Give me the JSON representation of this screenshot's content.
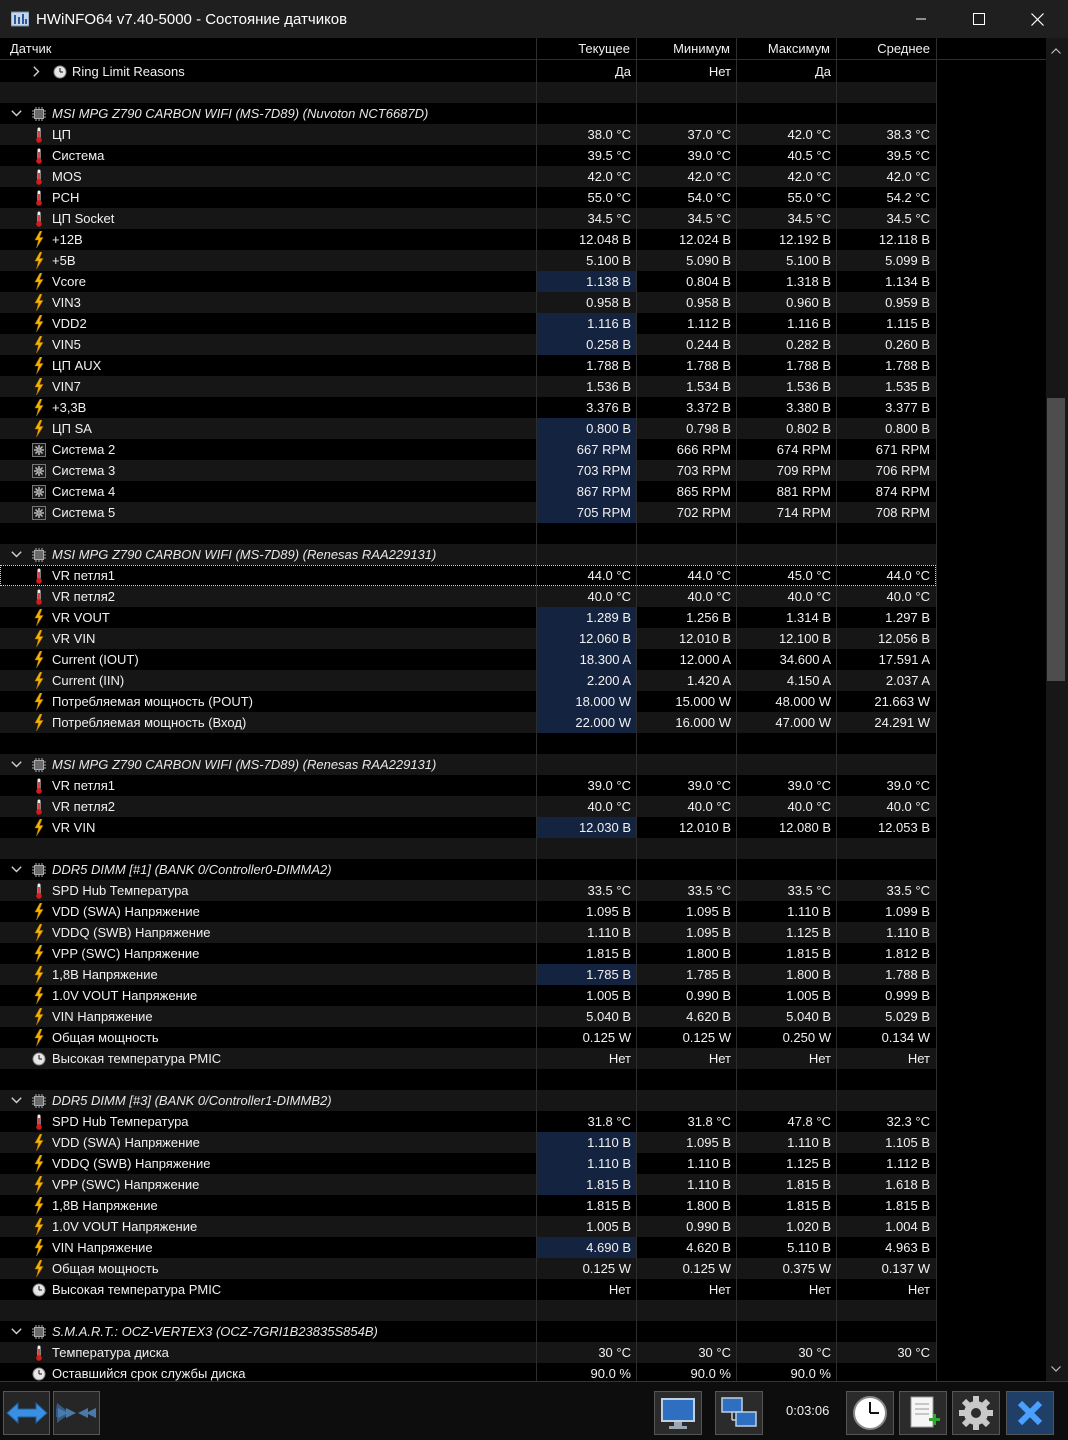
{
  "window": {
    "title": "HWiNFO64 v7.40-5000 - Состояние датчиков"
  },
  "header": {
    "sensor": "Датчик",
    "current": "Текущее",
    "minimum": "Минимум",
    "maximum": "Максимум",
    "average": "Среднее"
  },
  "rows": [
    {
      "type": "item",
      "icon": "clock-icon",
      "label": "Ring Limit Reasons",
      "expander": true,
      "values": [
        "Да",
        "Нет",
        "Да",
        ""
      ]
    },
    {
      "type": "blank"
    },
    {
      "type": "group",
      "label": "MSI MPG Z790 CARBON WIFI (MS-7D89) (Nuvoton NCT6687D)"
    },
    {
      "type": "item",
      "icon": "thermometer-icon",
      "label": "ЦП",
      "values": [
        "38.0 °C",
        "37.0 °C",
        "42.0 °C",
        "38.3 °C"
      ]
    },
    {
      "type": "item",
      "icon": "thermometer-icon",
      "label": "Система",
      "values": [
        "39.5 °C",
        "39.0 °C",
        "40.5 °C",
        "39.5 °C"
      ]
    },
    {
      "type": "item",
      "icon": "thermometer-icon",
      "label": "MOS",
      "values": [
        "42.0 °C",
        "42.0 °C",
        "42.0 °C",
        "42.0 °C"
      ]
    },
    {
      "type": "item",
      "icon": "thermometer-icon",
      "label": "PCH",
      "values": [
        "55.0 °C",
        "54.0 °C",
        "55.0 °C",
        "54.2 °C"
      ]
    },
    {
      "type": "item",
      "icon": "thermometer-icon",
      "label": "ЦП Socket",
      "values": [
        "34.5 °C",
        "34.5 °C",
        "34.5 °C",
        "34.5 °C"
      ]
    },
    {
      "type": "item",
      "icon": "lightning-icon",
      "label": "+12В",
      "values": [
        "12.048 В",
        "12.024 В",
        "12.192 В",
        "12.118 В"
      ]
    },
    {
      "type": "item",
      "icon": "lightning-icon",
      "label": "+5В",
      "values": [
        "5.100 В",
        "5.090 В",
        "5.100 В",
        "5.099 В"
      ]
    },
    {
      "type": "item",
      "icon": "lightning-icon",
      "label": "Vcore",
      "hl": true,
      "values": [
        "1.138 В",
        "0.804 В",
        "1.318 В",
        "1.134 В"
      ]
    },
    {
      "type": "item",
      "icon": "lightning-icon",
      "label": "VIN3",
      "values": [
        "0.958 В",
        "0.958 В",
        "0.960 В",
        "0.959 В"
      ]
    },
    {
      "type": "item",
      "icon": "lightning-icon",
      "label": "VDD2",
      "hl": true,
      "values": [
        "1.116 В",
        "1.112 В",
        "1.116 В",
        "1.115 В"
      ]
    },
    {
      "type": "item",
      "icon": "lightning-icon",
      "label": "VIN5",
      "hl": true,
      "values": [
        "0.258 В",
        "0.244 В",
        "0.282 В",
        "0.260 В"
      ]
    },
    {
      "type": "item",
      "icon": "lightning-icon",
      "label": "ЦП AUX",
      "values": [
        "1.788 В",
        "1.788 В",
        "1.788 В",
        "1.788 В"
      ]
    },
    {
      "type": "item",
      "icon": "lightning-icon",
      "label": "VIN7",
      "values": [
        "1.536 В",
        "1.534 В",
        "1.536 В",
        "1.535 В"
      ]
    },
    {
      "type": "item",
      "icon": "lightning-icon",
      "label": "+3,3В",
      "values": [
        "3.376 В",
        "3.372 В",
        "3.380 В",
        "3.377 В"
      ]
    },
    {
      "type": "item",
      "icon": "lightning-icon",
      "label": "ЦП SA",
      "hl": true,
      "values": [
        "0.800 В",
        "0.798 В",
        "0.802 В",
        "0.800 В"
      ]
    },
    {
      "type": "item",
      "icon": "fan-icon",
      "label": "Система 2",
      "hl": true,
      "values": [
        "667 RPM",
        "666 RPM",
        "674 RPM",
        "671 RPM"
      ]
    },
    {
      "type": "item",
      "icon": "fan-icon",
      "label": "Система 3",
      "hl": true,
      "values": [
        "703 RPM",
        "703 RPM",
        "709 RPM",
        "706 RPM"
      ]
    },
    {
      "type": "item",
      "icon": "fan-icon",
      "label": "Система 4",
      "hl": true,
      "values": [
        "867 RPM",
        "865 RPM",
        "881 RPM",
        "874 RPM"
      ]
    },
    {
      "type": "item",
      "icon": "fan-icon",
      "label": "Система 5",
      "hl": true,
      "values": [
        "705 RPM",
        "702 RPM",
        "714 RPM",
        "708 RPM"
      ]
    },
    {
      "type": "blank"
    },
    {
      "type": "group",
      "label": "MSI MPG Z790 CARBON WIFI (MS-7D89) (Renesas RAA229131)"
    },
    {
      "type": "item",
      "icon": "thermometer-icon",
      "label": "VR петля1",
      "selected": true,
      "values": [
        "44.0 °C",
        "44.0 °C",
        "45.0 °C",
        "44.0 °C"
      ]
    },
    {
      "type": "item",
      "icon": "thermometer-icon",
      "label": "VR петля2",
      "values": [
        "40.0 °C",
        "40.0 °C",
        "40.0 °C",
        "40.0 °C"
      ]
    },
    {
      "type": "item",
      "icon": "lightning-icon",
      "label": "VR VOUT",
      "hl": true,
      "values": [
        "1.289 В",
        "1.256 В",
        "1.314 В",
        "1.297 В"
      ]
    },
    {
      "type": "item",
      "icon": "lightning-icon",
      "label": "VR VIN",
      "hl": true,
      "values": [
        "12.060 В",
        "12.010 В",
        "12.100 В",
        "12.056 В"
      ]
    },
    {
      "type": "item",
      "icon": "lightning-icon",
      "label": "Current (IOUT)",
      "hl": true,
      "values": [
        "18.300 A",
        "12.000 A",
        "34.600 A",
        "17.591 A"
      ]
    },
    {
      "type": "item",
      "icon": "lightning-icon",
      "label": "Current (IIN)",
      "hl": true,
      "values": [
        "2.200 A",
        "1.420 A",
        "4.150 A",
        "2.037 A"
      ]
    },
    {
      "type": "item",
      "icon": "lightning-icon",
      "label": "Потребляемая мощность (POUT)",
      "hl": true,
      "values": [
        "18.000 W",
        "15.000 W",
        "48.000 W",
        "21.663 W"
      ]
    },
    {
      "type": "item",
      "icon": "lightning-icon",
      "label": "Потребляемая мощность (Вход)",
      "hl": true,
      "values": [
        "22.000 W",
        "16.000 W",
        "47.000 W",
        "24.291 W"
      ]
    },
    {
      "type": "blank"
    },
    {
      "type": "group",
      "label": "MSI MPG Z790 CARBON WIFI (MS-7D89) (Renesas RAA229131)"
    },
    {
      "type": "item",
      "icon": "thermometer-icon",
      "label": "VR петля1",
      "values": [
        "39.0 °C",
        "39.0 °C",
        "39.0 °C",
        "39.0 °C"
      ]
    },
    {
      "type": "item",
      "icon": "thermometer-icon",
      "label": "VR петля2",
      "values": [
        "40.0 °C",
        "40.0 °C",
        "40.0 °C",
        "40.0 °C"
      ]
    },
    {
      "type": "item",
      "icon": "lightning-icon",
      "label": "VR VIN",
      "hl": true,
      "values": [
        "12.030 В",
        "12.010 В",
        "12.080 В",
        "12.053 В"
      ]
    },
    {
      "type": "blank"
    },
    {
      "type": "group",
      "label": "DDR5 DIMM [#1] (BANK 0/Controller0-DIMMA2)"
    },
    {
      "type": "item",
      "icon": "thermometer-icon",
      "label": "SPD Hub Температура",
      "values": [
        "33.5 °C",
        "33.5 °C",
        "33.5 °C",
        "33.5 °C"
      ]
    },
    {
      "type": "item",
      "icon": "lightning-icon",
      "label": "VDD (SWA) Напряжение",
      "values": [
        "1.095 В",
        "1.095 В",
        "1.110 В",
        "1.099 В"
      ]
    },
    {
      "type": "item",
      "icon": "lightning-icon",
      "label": "VDDQ (SWB) Напряжение",
      "values": [
        "1.110 В",
        "1.095 В",
        "1.125 В",
        "1.110 В"
      ]
    },
    {
      "type": "item",
      "icon": "lightning-icon",
      "label": "VPP (SWC) Напряжение",
      "values": [
        "1.815 В",
        "1.800 В",
        "1.815 В",
        "1.812 В"
      ]
    },
    {
      "type": "item",
      "icon": "lightning-icon",
      "label": "1,8В Напряжение",
      "hl": true,
      "values": [
        "1.785 В",
        "1.785 В",
        "1.800 В",
        "1.788 В"
      ]
    },
    {
      "type": "item",
      "icon": "lightning-icon",
      "label": "1.0V VOUT Напряжение",
      "values": [
        "1.005 В",
        "0.990 В",
        "1.005 В",
        "0.999 В"
      ]
    },
    {
      "type": "item",
      "icon": "lightning-icon",
      "label": "VIN Напряжение",
      "values": [
        "5.040 В",
        "4.620 В",
        "5.040 В",
        "5.029 В"
      ]
    },
    {
      "type": "item",
      "icon": "lightning-icon",
      "label": "Общая мощность",
      "values": [
        "0.125 W",
        "0.125 W",
        "0.250 W",
        "0.134 W"
      ]
    },
    {
      "type": "item",
      "icon": "clock-icon",
      "label": "Высокая температура PMIC",
      "values": [
        "Нет",
        "Нет",
        "Нет",
        "Нет"
      ]
    },
    {
      "type": "blank"
    },
    {
      "type": "group",
      "label": "DDR5 DIMM [#3] (BANK 0/Controller1-DIMMB2)"
    },
    {
      "type": "item",
      "icon": "thermometer-icon",
      "label": "SPD Hub Температура",
      "values": [
        "31.8 °C",
        "31.8 °C",
        "47.8 °C",
        "32.3 °C"
      ]
    },
    {
      "type": "item",
      "icon": "lightning-icon",
      "label": "VDD (SWA) Напряжение",
      "hl": true,
      "values": [
        "1.110 В",
        "1.095 В",
        "1.110 В",
        "1.105 В"
      ]
    },
    {
      "type": "item",
      "icon": "lightning-icon",
      "label": "VDDQ (SWB) Напряжение",
      "hl": true,
      "values": [
        "1.110 В",
        "1.110 В",
        "1.125 В",
        "1.112 В"
      ]
    },
    {
      "type": "item",
      "icon": "lightning-icon",
      "label": "VPP (SWC) Напряжение",
      "hl": true,
      "values": [
        "1.815 В",
        "1.110 В",
        "1.815 В",
        "1.618 В"
      ]
    },
    {
      "type": "item",
      "icon": "lightning-icon",
      "label": "1,8В Напряжение",
      "values": [
        "1.815 В",
        "1.800 В",
        "1.815 В",
        "1.815 В"
      ]
    },
    {
      "type": "item",
      "icon": "lightning-icon",
      "label": "1.0V VOUT Напряжение",
      "values": [
        "1.005 В",
        "0.990 В",
        "1.020 В",
        "1.004 В"
      ]
    },
    {
      "type": "item",
      "icon": "lightning-icon",
      "label": "VIN Напряжение",
      "hl": true,
      "values": [
        "4.690 В",
        "4.620 В",
        "5.110 В",
        "4.963 В"
      ]
    },
    {
      "type": "item",
      "icon": "lightning-icon",
      "label": "Общая мощность",
      "values": [
        "0.125 W",
        "0.125 W",
        "0.375 W",
        "0.137 W"
      ]
    },
    {
      "type": "item",
      "icon": "clock-icon",
      "label": "Высокая температура PMIC",
      "values": [
        "Нет",
        "Нет",
        "Нет",
        "Нет"
      ]
    },
    {
      "type": "blank"
    },
    {
      "type": "group",
      "label": "S.M.A.R.T.: OCZ-VERTEX3 (OCZ-7GRI1B23835S854B)"
    },
    {
      "type": "item",
      "icon": "thermometer-icon",
      "label": "Температура диска",
      "values": [
        "30 °C",
        "30 °C",
        "30 °C",
        "30 °C"
      ]
    },
    {
      "type": "item",
      "icon": "clock-icon",
      "label": "Оставшийся срок службы диска",
      "values": [
        "90.0 %",
        "90.0 %",
        "90.0 %",
        ""
      ]
    }
  ],
  "toolbar": {
    "elapsed_time": "0:03:06"
  },
  "colors": {
    "background": "#000000",
    "row_alt": "#161616",
    "highlight": "#142440",
    "lightning": "#f5b400",
    "thermometer": "#d61b1b"
  }
}
